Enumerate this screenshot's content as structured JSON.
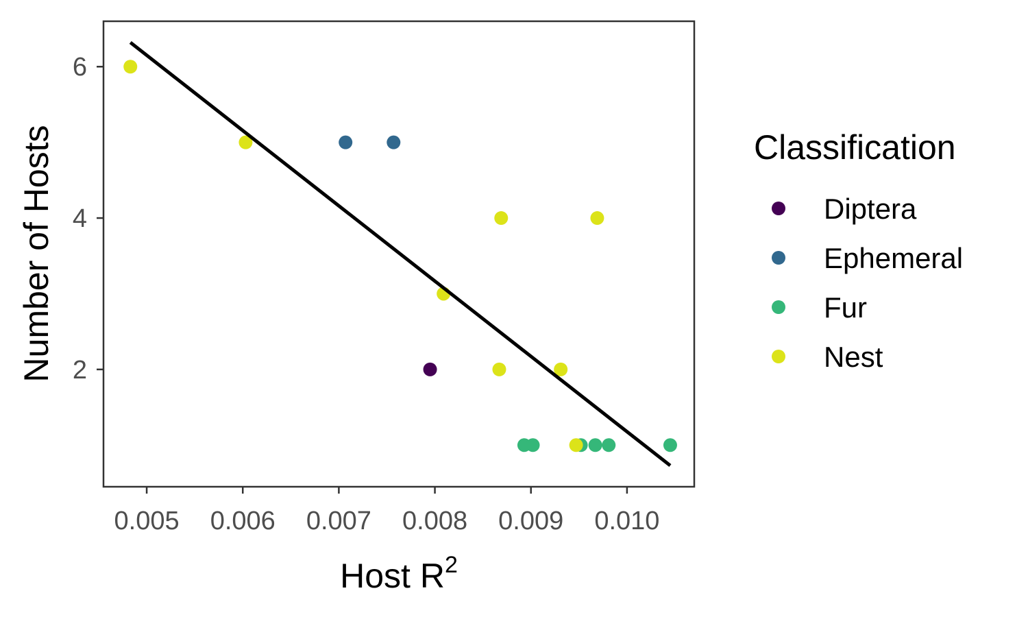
{
  "chart_data": {
    "type": "scatter",
    "xlabel": "Host R",
    "xlabel_superscript": "2",
    "ylabel": "Number of Hosts",
    "xlim": [
      0.00455,
      0.0107
    ],
    "ylim": [
      0.45,
      6.6
    ],
    "x_ticks": [
      0.005,
      0.006,
      0.007,
      0.008,
      0.009,
      0.01
    ],
    "x_tick_labels": [
      "0.005",
      "0.006",
      "0.007",
      "0.008",
      "0.009",
      "0.010"
    ],
    "y_ticks": [
      2,
      4,
      6
    ],
    "y_tick_labels": [
      "2",
      "4",
      "6"
    ],
    "grid": false,
    "legend": {
      "title": "Classification",
      "position": "right",
      "entries": [
        {
          "label": "Diptera",
          "color": "#440154"
        },
        {
          "label": "Ephemeral",
          "color": "#31688E"
        },
        {
          "label": "Fur",
          "color": "#35B779"
        },
        {
          "label": "Nest",
          "color": "#DCE319"
        }
      ]
    },
    "series": [
      {
        "name": "Diptera",
        "color": "#440154",
        "points": [
          [
            0.00795,
            2
          ]
        ]
      },
      {
        "name": "Ephemeral",
        "color": "#31688E",
        "points": [
          [
            0.00707,
            5
          ],
          [
            0.00757,
            5
          ]
        ]
      },
      {
        "name": "Fur",
        "color": "#35B779",
        "points": [
          [
            0.00893,
            1
          ],
          [
            0.00902,
            1
          ],
          [
            0.00952,
            1
          ],
          [
            0.00967,
            1
          ],
          [
            0.00981,
            1
          ],
          [
            0.01045,
            1
          ]
        ]
      },
      {
        "name": "Nest",
        "color": "#DCE319",
        "points": [
          [
            0.00483,
            6
          ],
          [
            0.00603,
            5
          ],
          [
            0.00869,
            4
          ],
          [
            0.00969,
            4
          ],
          [
            0.00809,
            3
          ],
          [
            0.00867,
            2
          ],
          [
            0.00931,
            2
          ],
          [
            0.00947,
            1
          ]
        ]
      }
    ],
    "trend_line": {
      "color": "#000000",
      "x": [
        0.00483,
        0.01045
      ],
      "y": [
        6.32,
        0.73
      ]
    }
  }
}
